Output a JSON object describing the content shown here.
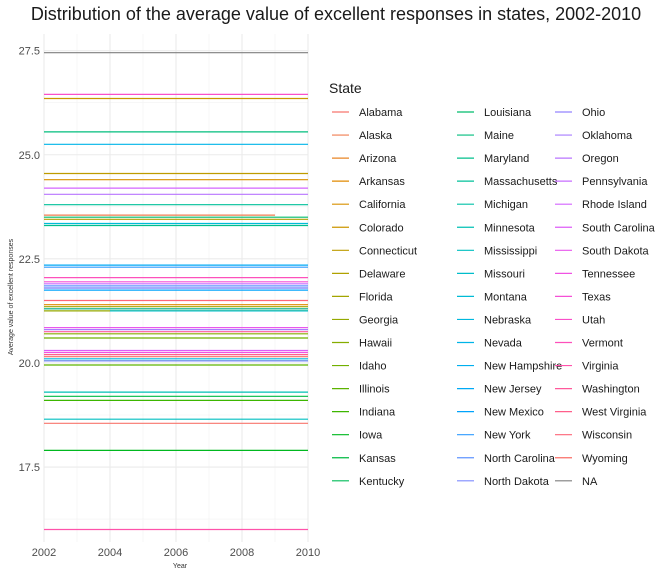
{
  "chart_data": {
    "type": "line",
    "title": "Distribution of the average value of excellent responses in states, 2002-2010",
    "xlabel": "Year",
    "ylabel": "Average value of excellent responses",
    "xlim": [
      2002,
      2010
    ],
    "ylim": [
      15.7,
      27.9
    ],
    "x_ticks": [
      2002,
      2004,
      2006,
      2008,
      2010
    ],
    "y_ticks": [
      17.5,
      20.0,
      22.5,
      25.0,
      27.5
    ],
    "y_tick_labels": [
      "17.5",
      "20.0",
      "22.5",
      "25.0",
      "27.5"
    ],
    "grid": true,
    "legend": {
      "title": "State",
      "placement": "right",
      "columns": 3
    },
    "series": [
      {
        "name": "Alabama",
        "color": "#F8766D",
        "x": [
          2002,
          2010
        ],
        "y": [
          18.55,
          18.55
        ]
      },
      {
        "name": "Alaska",
        "color": "#F17D51",
        "x": [
          2002,
          2009
        ],
        "y": [
          23.55,
          23.55
        ]
      },
      {
        "name": "Arizona",
        "color": "#E88526",
        "x": [
          2002,
          2010
        ],
        "y": [
          21.3,
          21.3
        ]
      },
      {
        "name": "Arkansas",
        "color": "#E18A00",
        "x": [
          2002,
          2010
        ],
        "y": [
          21.4,
          21.4
        ]
      },
      {
        "name": "California",
        "color": "#D89000",
        "x": [
          2002,
          2010
        ],
        "y": [
          24.4,
          24.4
        ]
      },
      {
        "name": "Colorado",
        "color": "#CC9600",
        "x": [
          2002,
          2010
        ],
        "y": [
          26.35,
          26.35
        ]
      },
      {
        "name": "Connecticut",
        "color": "#BE9C00",
        "x": [
          2002,
          2010
        ],
        "y": [
          24.55,
          24.55
        ]
      },
      {
        "name": "Delaware",
        "color": "#B0A100",
        "x": [
          2002,
          2010
        ],
        "y": [
          23.45,
          23.45
        ]
      },
      {
        "name": "Florida",
        "color": "#A3A500",
        "x": [
          2002,
          2010
        ],
        "y": [
          21.35,
          21.35
        ]
      },
      {
        "name": "Georgia",
        "color": "#95A900",
        "x": [
          2002,
          2010
        ],
        "y": [
          21.25,
          21.25
        ]
      },
      {
        "name": "Hawaii",
        "color": "#85AD00",
        "x": [
          2002,
          2010
        ],
        "y": [
          20.7,
          20.7
        ]
      },
      {
        "name": "Idaho",
        "color": "#72B000",
        "x": [
          2002,
          2010
        ],
        "y": [
          20.6,
          20.6
        ]
      },
      {
        "name": "Illinois",
        "color": "#5CB300",
        "x": [
          2002,
          2010
        ],
        "y": [
          19.95,
          19.95
        ]
      },
      {
        "name": "Indiana",
        "color": "#3DB600",
        "x": [
          2002,
          2010
        ],
        "y": [
          19.1,
          19.1
        ]
      },
      {
        "name": "Iowa",
        "color": "#00B81F",
        "x": [
          2002,
          2010
        ],
        "y": [
          17.9,
          17.9
        ]
      },
      {
        "name": "Kansas",
        "color": "#00BA42",
        "x": [
          2002,
          2010
        ],
        "y": [
          19.2,
          19.2
        ]
      },
      {
        "name": "Kentucky",
        "color": "#00BB59",
        "x": [
          2002,
          2010
        ],
        "y": [
          20.05,
          20.05
        ]
      },
      {
        "name": "Louisiana",
        "color": "#00BC6C",
        "x": [
          2002,
          2010
        ],
        "y": [
          23.5,
          23.5
        ]
      },
      {
        "name": "Maine",
        "color": "#00BE7D",
        "x": [
          2002,
          2010
        ],
        "y": [
          25.55,
          25.55
        ]
      },
      {
        "name": "Maryland",
        "color": "#00BF8C",
        "x": [
          2002,
          2010
        ],
        "y": [
          23.3,
          23.3
        ]
      },
      {
        "name": "Massachusetts",
        "color": "#00C09A",
        "x": [
          2002,
          2010
        ],
        "y": [
          23.8,
          23.8
        ]
      },
      {
        "name": "Michigan",
        "color": "#00C0A7",
        "x": [
          2002,
          2010
        ],
        "y": [
          21.3,
          21.3
        ]
      },
      {
        "name": "Minnesota",
        "color": "#00C0B4",
        "x": [
          2002,
          2010
        ],
        "y": [
          19.3,
          19.3
        ]
      },
      {
        "name": "Mississippi",
        "color": "#00BFC0",
        "x": [
          2002,
          2010
        ],
        "y": [
          18.65,
          18.65
        ]
      },
      {
        "name": "Missouri",
        "color": "#00BDCB",
        "x": [
          2004,
          2010
        ],
        "y": [
          21.25,
          21.25
        ]
      },
      {
        "name": "Montana",
        "color": "#00BBD6",
        "x": [
          2002,
          2010
        ],
        "y": [
          23.35,
          23.35
        ]
      },
      {
        "name": "Nebraska",
        "color": "#00B8DF",
        "x": [
          2002,
          2010
        ],
        "y": [
          20.1,
          20.1
        ]
      },
      {
        "name": "Nevada",
        "color": "#00B4E8",
        "x": [
          2002,
          2010
        ],
        "y": [
          25.25,
          25.25
        ]
      },
      {
        "name": "New Hampshire",
        "color": "#00AFEF",
        "x": [
          2002,
          2010
        ],
        "y": [
          21.8,
          21.8
        ]
      },
      {
        "name": "New Jersey",
        "color": "#00A9F6",
        "x": [
          2002,
          2010
        ],
        "y": [
          22.35,
          22.35
        ]
      },
      {
        "name": "New Mexico",
        "color": "#00A3FC",
        "x": [
          2002,
          2010
        ],
        "y": [
          21.75,
          21.75
        ]
      },
      {
        "name": "New York",
        "color": "#309BFF",
        "x": [
          2002,
          2010
        ],
        "y": [
          22.3,
          22.3
        ]
      },
      {
        "name": "North Carolina",
        "color": "#6094FF",
        "x": [
          2002,
          2010
        ],
        "y": [
          21.85,
          21.85
        ]
      },
      {
        "name": "North Dakota",
        "color": "#7F8CFF",
        "x": [
          2002,
          2010
        ],
        "y": [
          20.05,
          20.05
        ]
      },
      {
        "name": "Ohio",
        "color": "#9584FF",
        "x": [
          2002,
          2010
        ],
        "y": [
          21.8,
          21.8
        ]
      },
      {
        "name": "Oklahoma",
        "color": "#A77CFF",
        "x": [
          2002,
          2010
        ],
        "y": [
          20.8,
          20.8
        ]
      },
      {
        "name": "Oregon",
        "color": "#B874FF",
        "x": [
          2002,
          2010
        ],
        "y": [
          24.05,
          24.05
        ]
      },
      {
        "name": "Pennsylvania",
        "color": "#C76DFF",
        "x": [
          2002,
          2010
        ],
        "y": [
          21.9,
          21.9
        ]
      },
      {
        "name": "Rhode Island",
        "color": "#D464FF",
        "x": [
          2002,
          2010
        ],
        "y": [
          24.2,
          24.2
        ]
      },
      {
        "name": "South Carolina",
        "color": "#DE5DF7",
        "x": [
          2002,
          2010
        ],
        "y": [
          20.3,
          20.3
        ]
      },
      {
        "name": "South Dakota",
        "color": "#E857ED",
        "x": [
          2002,
          2010
        ],
        "y": [
          20.85,
          20.85
        ]
      },
      {
        "name": "Tennessee",
        "color": "#F052E3",
        "x": [
          2002,
          2010
        ],
        "y": [
          20.25,
          20.25
        ]
      },
      {
        "name": "Texas",
        "color": "#F550D6",
        "x": [
          2002,
          2010
        ],
        "y": [
          21.95,
          21.95
        ]
      },
      {
        "name": "Utah",
        "color": "#FA4FC9",
        "x": [
          2002,
          2010
        ],
        "y": [
          26.45,
          26.45
        ]
      },
      {
        "name": "Vermont",
        "color": "#FD50BB",
        "x": [
          2002,
          2010
        ],
        "y": [
          22.05,
          22.05
        ]
      },
      {
        "name": "Virginia",
        "color": "#FF53AB",
        "x": [
          2002,
          2010
        ],
        "y": [
          16.0,
          16.0
        ]
      },
      {
        "name": "Washington",
        "color": "#FF599B",
        "x": [
          2002,
          2010
        ],
        "y": [
          20.75,
          20.75
        ]
      },
      {
        "name": "West Virginia",
        "color": "#FF5F8A",
        "x": [
          2002,
          2010
        ],
        "y": [
          20.2,
          20.2
        ]
      },
      {
        "name": "Wisconsin",
        "color": "#FD6678",
        "x": [
          2002,
          2010
        ],
        "y": [
          21.5,
          21.5
        ]
      },
      {
        "name": "Wyoming",
        "color": "#F96E66",
        "x": [
          2002,
          2010
        ],
        "y": [
          20.15,
          20.15
        ]
      },
      {
        "name": "NA",
        "color": "#7F7F7F",
        "x": [
          2002,
          2010
        ],
        "y": [
          27.45,
          27.45
        ]
      }
    ]
  }
}
